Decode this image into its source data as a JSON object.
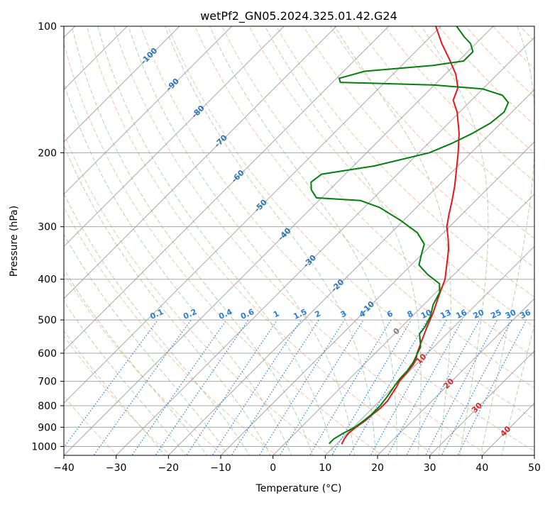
{
  "chart_data": {
    "type": "line",
    "title": "wetPf2_GN05.2024.325.01.42.G24",
    "xlabel": "Temperature (°C)",
    "ylabel": "Pressure (hPa)",
    "xlim": [
      -40,
      50
    ],
    "ylim": [
      1050,
      100
    ],
    "y_scale": "log",
    "skew": true,
    "grid": true,
    "x_ticks": [
      -40,
      -30,
      -20,
      -10,
      0,
      10,
      20,
      30,
      40,
      50
    ],
    "y_ticks": [
      100,
      200,
      300,
      400,
      500,
      600,
      700,
      800,
      900,
      1000
    ],
    "series": [
      {
        "role": "temperature",
        "color": "#e8141b",
        "points": [
          {
            "p": 988,
            "t": 11.0
          },
          {
            "p": 960,
            "t": 10.5
          },
          {
            "p": 930,
            "t": 10.2
          },
          {
            "p": 900,
            "t": 10.5
          },
          {
            "p": 870,
            "t": 11.0
          },
          {
            "p": 840,
            "t": 11.2
          },
          {
            "p": 810,
            "t": 11.5
          },
          {
            "p": 780,
            "t": 11.5
          },
          {
            "p": 750,
            "t": 11.0
          },
          {
            "p": 720,
            "t": 10.5
          },
          {
            "p": 700,
            "t": 10.0
          },
          {
            "p": 670,
            "t": 9.8
          },
          {
            "p": 640,
            "t": 9.5
          },
          {
            "p": 620,
            "t": 9.0
          },
          {
            "p": 600,
            "t": 8.0
          },
          {
            "p": 560,
            "t": 6.5
          },
          {
            "p": 520,
            "t": 4.9
          },
          {
            "p": 480,
            "t": 3.3
          },
          {
            "p": 440,
            "t": 1.3
          },
          {
            "p": 400,
            "t": -0.8
          },
          {
            "p": 370,
            "t": -3.2
          },
          {
            "p": 340,
            "t": -5.8
          },
          {
            "p": 320,
            "t": -8.0
          },
          {
            "p": 300,
            "t": -10.5
          },
          {
            "p": 280,
            "t": -12.5
          },
          {
            "p": 260,
            "t": -14.5
          },
          {
            "p": 240,
            "t": -16.8
          },
          {
            "p": 220,
            "t": -19.5
          },
          {
            "p": 200,
            "t": -22.5
          },
          {
            "p": 180,
            "t": -26.0
          },
          {
            "p": 160,
            "t": -30.5
          },
          {
            "p": 150,
            "t": -33.5
          },
          {
            "p": 140,
            "t": -35.0
          },
          {
            "p": 130,
            "t": -38.0
          },
          {
            "p": 120,
            "t": -42.0
          },
          {
            "p": 110,
            "t": -46.5
          },
          {
            "p": 100,
            "t": -51.0
          }
        ]
      },
      {
        "role": "dewpoint",
        "color": "#00800f",
        "points": [
          {
            "p": 985,
            "t": 8.5
          },
          {
            "p": 960,
            "t": 8.5
          },
          {
            "p": 930,
            "t": 9.2
          },
          {
            "p": 900,
            "t": 10.3
          },
          {
            "p": 870,
            "t": 10.7
          },
          {
            "p": 840,
            "t": 11.0
          },
          {
            "p": 800,
            "t": 11.0
          },
          {
            "p": 760,
            "t": 10.6
          },
          {
            "p": 720,
            "t": 10.0
          },
          {
            "p": 690,
            "t": 9.6
          },
          {
            "p": 660,
            "t": 9.5
          },
          {
            "p": 630,
            "t": 9.0
          },
          {
            "p": 600,
            "t": 8.1
          },
          {
            "p": 580,
            "t": 7.5
          },
          {
            "p": 560,
            "t": 6.2
          },
          {
            "p": 540,
            "t": 4.8
          },
          {
            "p": 520,
            "t": 4.5
          },
          {
            "p": 490,
            "t": 3.5
          },
          {
            "p": 460,
            "t": 1.8
          },
          {
            "p": 430,
            "t": 0.7
          },
          {
            "p": 410,
            "t": -1.0
          },
          {
            "p": 390,
            "t": -5.0
          },
          {
            "p": 370,
            "t": -8.5
          },
          {
            "p": 350,
            "t": -10.0
          },
          {
            "p": 330,
            "t": -11.5
          },
          {
            "p": 310,
            "t": -15.0
          },
          {
            "p": 290,
            "t": -20.5
          },
          {
            "p": 270,
            "t": -27.0
          },
          {
            "p": 260,
            "t": -32.0
          },
          {
            "p": 256,
            "t": -41.0
          },
          {
            "p": 245,
            "t": -43.5
          },
          {
            "p": 235,
            "t": -45.0
          },
          {
            "p": 225,
            "t": -44.5
          },
          {
            "p": 215,
            "t": -36.0
          },
          {
            "p": 200,
            "t": -28.0
          },
          {
            "p": 190,
            "t": -25.5
          },
          {
            "p": 180,
            "t": -23.5
          },
          {
            "p": 170,
            "t": -22.0
          },
          {
            "p": 160,
            "t": -21.5
          },
          {
            "p": 152,
            "t": -22.5
          },
          {
            "p": 146,
            "t": -25.0
          },
          {
            "p": 141,
            "t": -30.0
          },
          {
            "p": 138,
            "t": -40.0
          },
          {
            "p": 136,
            "t": -58.5
          },
          {
            "p": 133,
            "t": -59.5
          },
          {
            "p": 128,
            "t": -56.0
          },
          {
            "p": 124,
            "t": -44.0
          },
          {
            "p": 121,
            "t": -39.0
          },
          {
            "p": 115,
            "t": -39.0
          },
          {
            "p": 110,
            "t": -41.0
          },
          {
            "p": 106,
            "t": -43.5
          },
          {
            "p": 100,
            "t": -47.0
          }
        ]
      }
    ],
    "overlays": {
      "isotherm_color": "#999999",
      "dry_adiabat_color": "#f4a582",
      "moist_adiabat_color": "#92c28e",
      "mixing_ratio_color": "#2a7fd4",
      "isotherm_label_color": "#2c74b4",
      "warm_label_color": "#d62728",
      "zero_label_color": "#7f7f7f",
      "isotherm_labels": [
        "-100",
        "-90",
        "-80",
        "-70",
        "-60",
        "-50",
        "-40",
        "-30",
        "-20",
        "-10",
        "0",
        "10",
        "20",
        "30",
        "40"
      ],
      "mixing_ratio_labels": [
        "0.1",
        "0.2",
        "0.4",
        "0.6",
        "1",
        "1.5",
        "2",
        "3",
        "4",
        "6",
        "8",
        "10",
        "13",
        "16",
        "20",
        "25",
        "30",
        "36"
      ]
    }
  }
}
